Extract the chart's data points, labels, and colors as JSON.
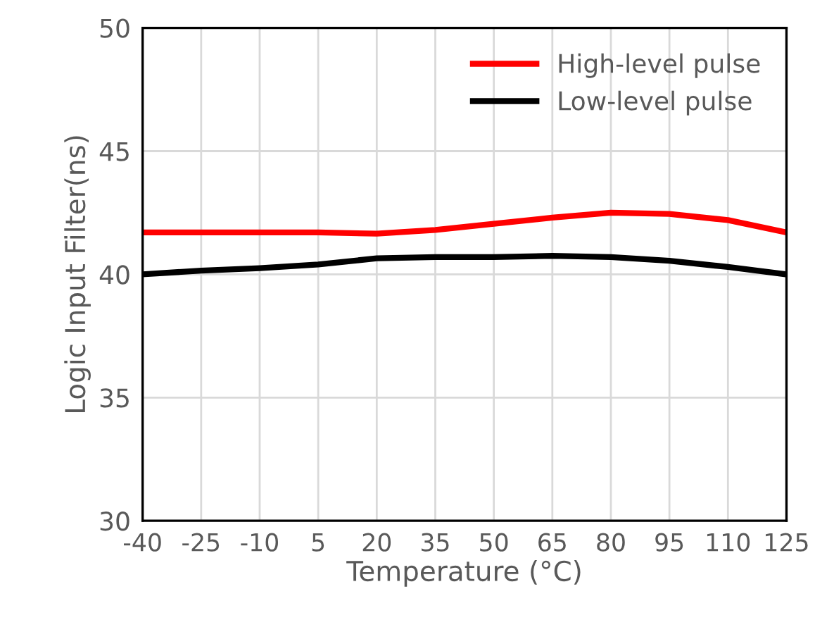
{
  "chart_data": {
    "type": "line",
    "xlabel": "Temperature (°C)",
    "ylabel": "Logic Input Filter(ns)",
    "x": [
      -40,
      -25,
      -10,
      5,
      20,
      35,
      50,
      65,
      80,
      95,
      110,
      125
    ],
    "series": [
      {
        "name": "High-level pulse",
        "color": "#ff0000",
        "values": [
          41.7,
          41.7,
          41.7,
          41.7,
          41.65,
          41.8,
          42.05,
          42.3,
          42.5,
          42.45,
          42.2,
          41.7
        ]
      },
      {
        "name": "Low-level pulse",
        "color": "#000000",
        "values": [
          40.0,
          40.15,
          40.25,
          40.4,
          40.65,
          40.7,
          40.7,
          40.75,
          40.7,
          40.55,
          40.3,
          40.0
        ]
      }
    ],
    "xlim": [
      -40,
      125
    ],
    "xticks": [
      -40,
      -25,
      -10,
      5,
      20,
      35,
      50,
      65,
      80,
      95,
      110,
      125
    ],
    "ylim": [
      30,
      50
    ],
    "yticks": [
      30,
      35,
      40,
      45,
      50
    ],
    "grid": true,
    "legend": "top right",
    "marker": "none",
    "line_style": "solid"
  }
}
